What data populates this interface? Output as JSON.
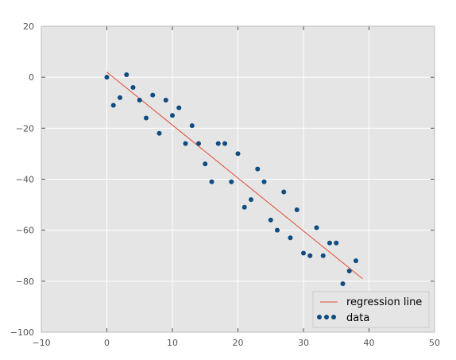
{
  "chart_data": {
    "type": "scatter",
    "title": "",
    "xlabel": "",
    "ylabel": "",
    "xlim": [
      -10,
      50
    ],
    "ylim": [
      -100,
      20
    ],
    "xticks": [
      -10,
      0,
      10,
      20,
      30,
      40,
      50
    ],
    "yticks": [
      -100,
      -80,
      -60,
      -40,
      -20,
      0,
      20
    ],
    "xtick_labels": [
      "−10",
      "0",
      "10",
      "20",
      "30",
      "40",
      "50"
    ],
    "ytick_labels": [
      "−100",
      "−80",
      "−60",
      "−40",
      "−20",
      "0",
      "20"
    ],
    "grid": true,
    "legend_position": "lower-right",
    "colors": {
      "background": "#e5e5e5",
      "grid": "#ffffff",
      "line": "#e24a33",
      "points": "#0f4c81"
    },
    "series": [
      {
        "name": "data",
        "kind": "scatter",
        "x": [
          0,
          1,
          2,
          3,
          4,
          5,
          6,
          7,
          8,
          9,
          10,
          11,
          12,
          13,
          14,
          15,
          16,
          17,
          18,
          19,
          20,
          21,
          22,
          23,
          24,
          25,
          26,
          27,
          28,
          29,
          30,
          31,
          32,
          33,
          34,
          35,
          36,
          37,
          38,
          39
        ],
        "y": [
          0,
          -11,
          -8,
          1,
          -4,
          -9,
          -16,
          -7,
          -22,
          -9,
          -15,
          -12,
          -26,
          -19,
          -26,
          -34,
          -41,
          -26,
          -26,
          -41,
          -30,
          -51,
          -48,
          -36,
          -41,
          -56,
          -60,
          -45,
          -63,
          -52,
          -69,
          -70,
          -59,
          -70,
          -65,
          -65,
          -81,
          -76,
          -72,
          -85
        ]
      },
      {
        "name": "regression line",
        "kind": "line",
        "x": [
          0,
          39
        ],
        "y": [
          2,
          -79
        ]
      }
    ]
  }
}
